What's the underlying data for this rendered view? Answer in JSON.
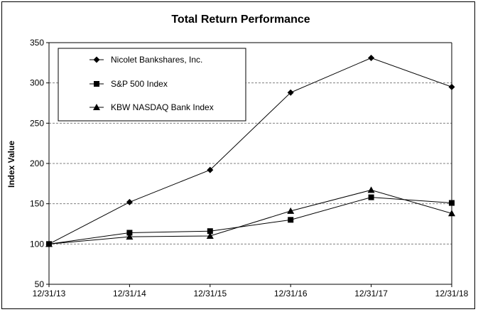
{
  "chart_data": {
    "type": "line",
    "title": "Total Return Performance",
    "xlabel": "",
    "ylabel": "Index Value",
    "categories": [
      "12/31/13",
      "12/31/14",
      "12/31/15",
      "12/31/16",
      "12/31/17",
      "12/31/18"
    ],
    "ylim": [
      50,
      350
    ],
    "yticks": [
      50,
      100,
      150,
      200,
      250,
      300,
      350
    ],
    "grid": "horizontal dashed",
    "legend_position": "top-left",
    "series": [
      {
        "name": "Nicolet Bankshares, Inc.",
        "marker": "diamond",
        "values": [
          100,
          152,
          192,
          288,
          331,
          295
        ]
      },
      {
        "name": "S&P 500 Index",
        "marker": "square",
        "values": [
          100,
          114,
          116,
          130,
          158,
          151
        ]
      },
      {
        "name": "KBW NASDAQ Bank Index",
        "marker": "triangle",
        "values": [
          100,
          109,
          110,
          141,
          167,
          138
        ]
      }
    ],
    "colors": {
      "line": "#000000",
      "grid": "#808080",
      "background": "#ffffff"
    }
  }
}
